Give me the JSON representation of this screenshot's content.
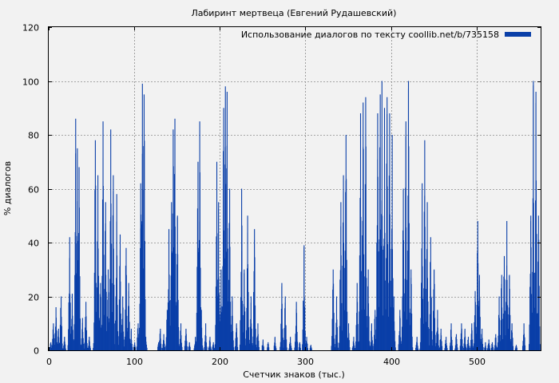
{
  "chart_data": {
    "type": "bar",
    "title": "Лабиринт мертвеца (Евгений Рудашевский)",
    "xlabel": "Счетчик знаков (тыс.)",
    "ylabel": "% диалогов",
    "xlim": [
      0,
      575
    ],
    "ylim": [
      0,
      120
    ],
    "xticks": [
      0,
      100,
      200,
      300,
      400,
      500
    ],
    "yticks": [
      0,
      20,
      40,
      60,
      80,
      100,
      120
    ],
    "grid": true,
    "legend_position": "top-right",
    "series": [
      {
        "name": "Использование диалогов по тексту coollib.net/b/735158",
        "color": "#0a3fa8",
        "peaks": [
          [
            2,
            3
          ],
          [
            5,
            10
          ],
          [
            8,
            16
          ],
          [
            11,
            8
          ],
          [
            14,
            20
          ],
          [
            18,
            5
          ],
          [
            24,
            42
          ],
          [
            27,
            21
          ],
          [
            31,
            86
          ],
          [
            33,
            75
          ],
          [
            35,
            68
          ],
          [
            39,
            12
          ],
          [
            43,
            18
          ],
          [
            47,
            5
          ],
          [
            54,
            78
          ],
          [
            57,
            65
          ],
          [
            60,
            25
          ],
          [
            63,
            85
          ],
          [
            66,
            55
          ],
          [
            69,
            30
          ],
          [
            72,
            82
          ],
          [
            75,
            65
          ],
          [
            79,
            58
          ],
          [
            83,
            43
          ],
          [
            86,
            20
          ],
          [
            90,
            38
          ],
          [
            93,
            25
          ],
          [
            96,
            8
          ],
          [
            100,
            3
          ],
          [
            104,
            10
          ],
          [
            107,
            62
          ],
          [
            109,
            99
          ],
          [
            111,
            95
          ],
          [
            113,
            5
          ],
          [
            128,
            3
          ],
          [
            130,
            8
          ],
          [
            134,
            6
          ],
          [
            138,
            15
          ],
          [
            140,
            45
          ],
          [
            143,
            55
          ],
          [
            145,
            82
          ],
          [
            147,
            86
          ],
          [
            150,
            50
          ],
          [
            154,
            10
          ],
          [
            160,
            8
          ],
          [
            164,
            3
          ],
          [
            171,
            5
          ],
          [
            174,
            70
          ],
          [
            176,
            85
          ],
          [
            178,
            15
          ],
          [
            183,
            10
          ],
          [
            188,
            5
          ],
          [
            192,
            3
          ],
          [
            196,
            70
          ],
          [
            198,
            55
          ],
          [
            201,
            30
          ],
          [
            204,
            90
          ],
          [
            206,
            98
          ],
          [
            208,
            96
          ],
          [
            211,
            60
          ],
          [
            214,
            20
          ],
          [
            219,
            10
          ],
          [
            225,
            60
          ],
          [
            228,
            30
          ],
          [
            232,
            50
          ],
          [
            236,
            20
          ],
          [
            240,
            45
          ],
          [
            244,
            10
          ],
          [
            250,
            4
          ],
          [
            256,
            3
          ],
          [
            264,
            5
          ],
          [
            272,
            25
          ],
          [
            276,
            20
          ],
          [
            282,
            5
          ],
          [
            289,
            18
          ],
          [
            293,
            3
          ],
          [
            298,
            39
          ],
          [
            301,
            5
          ],
          [
            306,
            2
          ],
          [
            332,
            30
          ],
          [
            336,
            20
          ],
          [
            341,
            55
          ],
          [
            344,
            65
          ],
          [
            347,
            80
          ],
          [
            350,
            10
          ],
          [
            356,
            5
          ],
          [
            360,
            25
          ],
          [
            364,
            88
          ],
          [
            367,
            92
          ],
          [
            370,
            94
          ],
          [
            373,
            30
          ],
          [
            377,
            10
          ],
          [
            381,
            15
          ],
          [
            384,
            88
          ],
          [
            387,
            95
          ],
          [
            389,
            100
          ],
          [
            392,
            90
          ],
          [
            395,
            94
          ],
          [
            398,
            88
          ],
          [
            401,
            80
          ],
          [
            403,
            20
          ],
          [
            410,
            15
          ],
          [
            414,
            60
          ],
          [
            417,
            85
          ],
          [
            420,
            100
          ],
          [
            423,
            30
          ],
          [
            430,
            5
          ],
          [
            436,
            62
          ],
          [
            439,
            78
          ],
          [
            442,
            55
          ],
          [
            446,
            42
          ],
          [
            450,
            30
          ],
          [
            454,
            15
          ],
          [
            458,
            8
          ],
          [
            464,
            5
          ],
          [
            470,
            10
          ],
          [
            476,
            6
          ],
          [
            482,
            10
          ],
          [
            486,
            8
          ],
          [
            490,
            5
          ],
          [
            494,
            10
          ],
          [
            498,
            22
          ],
          [
            501,
            48
          ],
          [
            503,
            28
          ],
          [
            506,
            8
          ],
          [
            510,
            3
          ],
          [
            514,
            4
          ],
          [
            518,
            3
          ],
          [
            522,
            6
          ],
          [
            526,
            20
          ],
          [
            529,
            28
          ],
          [
            532,
            35
          ],
          [
            535,
            48
          ],
          [
            538,
            28
          ],
          [
            541,
            10
          ],
          [
            546,
            2
          ],
          [
            555,
            10
          ],
          [
            563,
            50
          ],
          [
            566,
            100
          ],
          [
            569,
            96
          ],
          [
            572,
            50
          ]
        ]
      }
    ]
  }
}
